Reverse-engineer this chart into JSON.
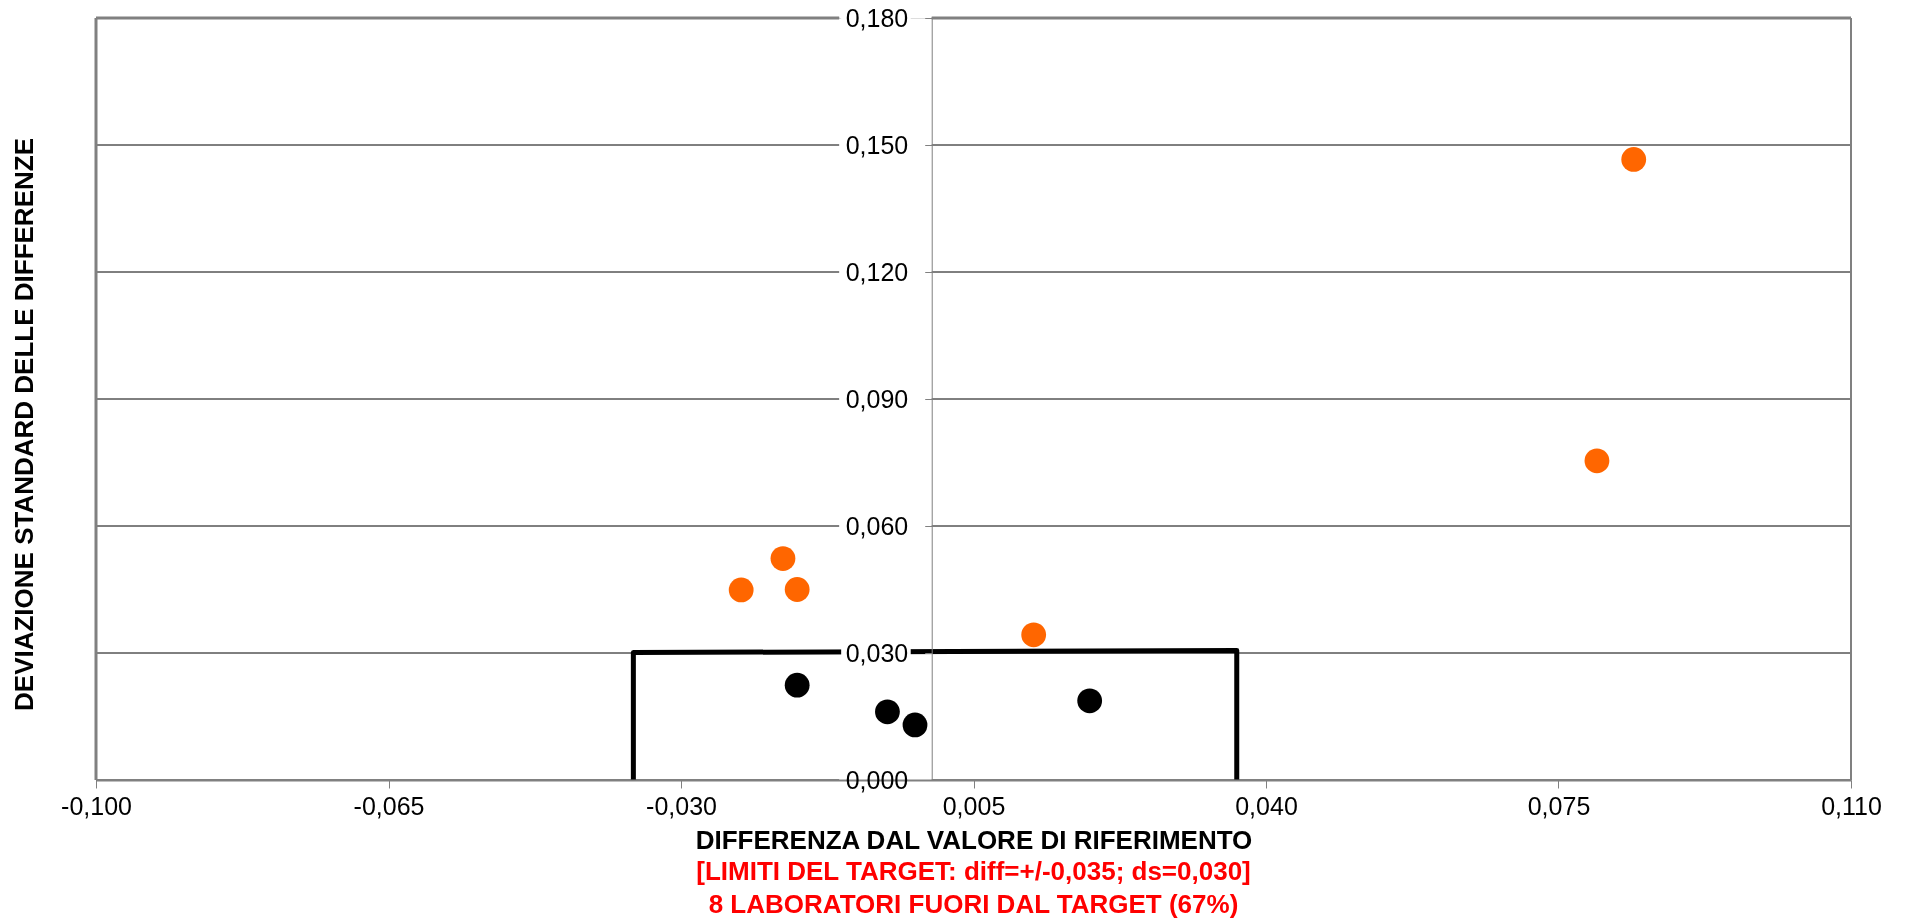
{
  "chart_data": {
    "type": "scatter",
    "xlabel": "DIFFERENZA DAL VALORE DI RIFERIMENTO",
    "ylabel": "DEVIAZIONE STANDARD DELLE DIFFERENZE",
    "annotations": [
      "[LIMITI DEL TARGET: diff=+/-0,035; ds=0,030]",
      "8 LABORATORI FUORI DAL TARGET (67%)"
    ],
    "xlim": [
      -0.1,
      0.11
    ],
    "xticks": [
      {
        "value": -0.1,
        "label": "-0,100"
      },
      {
        "value": -0.065,
        "label": "-0,065"
      },
      {
        "value": -0.03,
        "label": "-0,030"
      },
      {
        "value": 0.005,
        "label": "0,005"
      },
      {
        "value": 0.04,
        "label": "0,040"
      },
      {
        "value": 0.075,
        "label": "0,075"
      },
      {
        "value": 0.11,
        "label": "0,110"
      }
    ],
    "ylim": [
      0,
      0.18
    ],
    "yticks": [
      {
        "value": 0,
        "label": "0,000"
      },
      {
        "value": 0.03,
        "label": "0,030"
      },
      {
        "value": 0.06,
        "label": "0,060"
      },
      {
        "value": 0.09,
        "label": "0,090"
      },
      {
        "value": 0.12,
        "label": "0,120"
      },
      {
        "value": 0.15,
        "label": "0,150"
      },
      {
        "value": 0.18,
        "label": "0,180"
      }
    ],
    "grid": "y",
    "marker": "circle",
    "series": [
      {
        "type": "line",
        "color": "#000000",
        "marker": "none",
        "line_style": "solid",
        "x": [
          -0.0357,
          -0.0357,
          0.0365,
          0.0365
        ],
        "values": [
          0,
          0.0301,
          0.0306,
          0
        ]
      },
      {
        "color": "#ff6600",
        "x": [
          -0.0228,
          -0.0178,
          -0.0161,
          0.0122,
          0.0796,
          0.084
        ],
        "values": [
          0.0449,
          0.0523,
          0.045,
          0.0343,
          0.0754,
          0.1466
        ]
      },
      {
        "color": "#000000",
        "x": [
          -0.0161,
          -0.0053,
          -0.002,
          0.0189
        ],
        "values": [
          0.0224,
          0.0161,
          0.013,
          0.0187
        ]
      }
    ]
  }
}
